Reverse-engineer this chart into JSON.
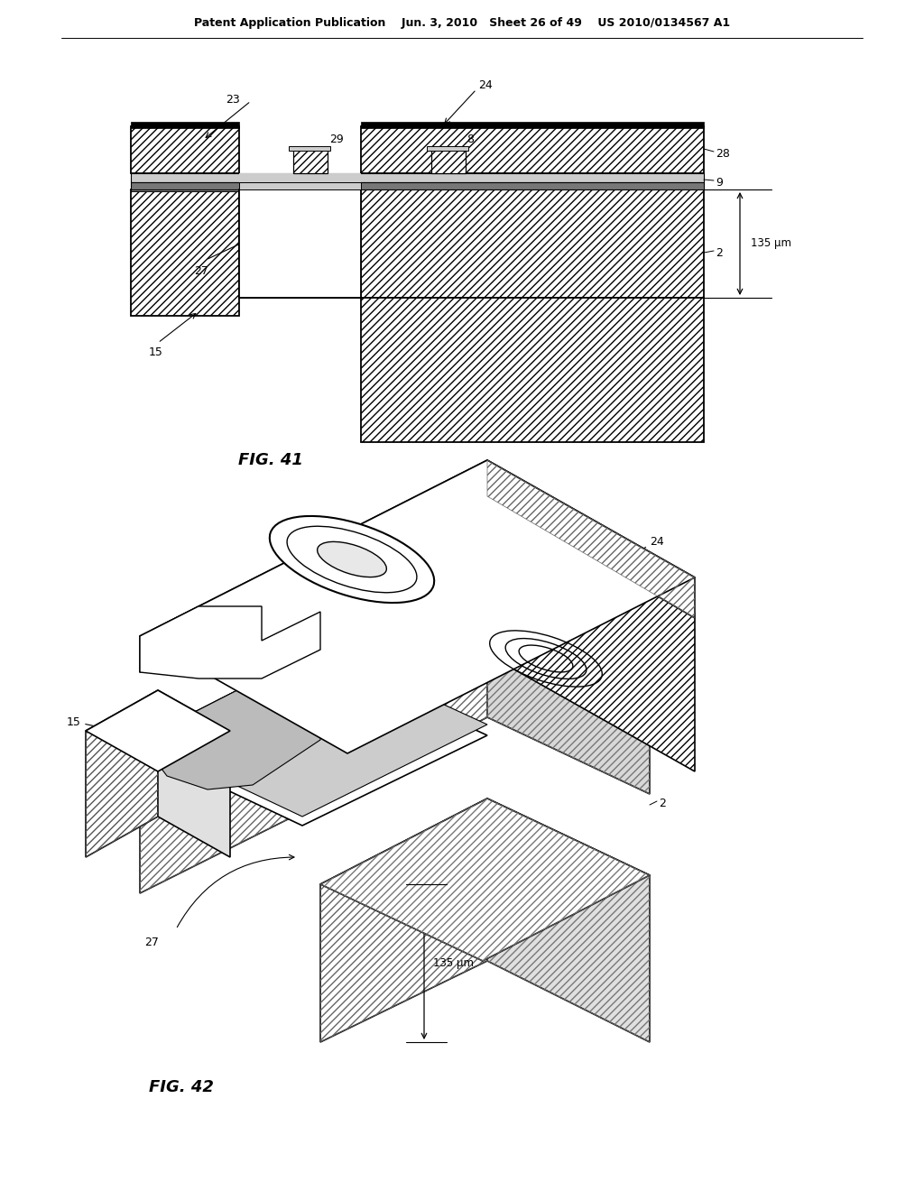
{
  "bg_color": "#ffffff",
  "header": "Patent Application Publication    Jun. 3, 2010   Sheet 26 of 49    US 2010/0134567 A1",
  "fig41_caption": "FIG. 41",
  "fig42_caption": "FIG. 42"
}
